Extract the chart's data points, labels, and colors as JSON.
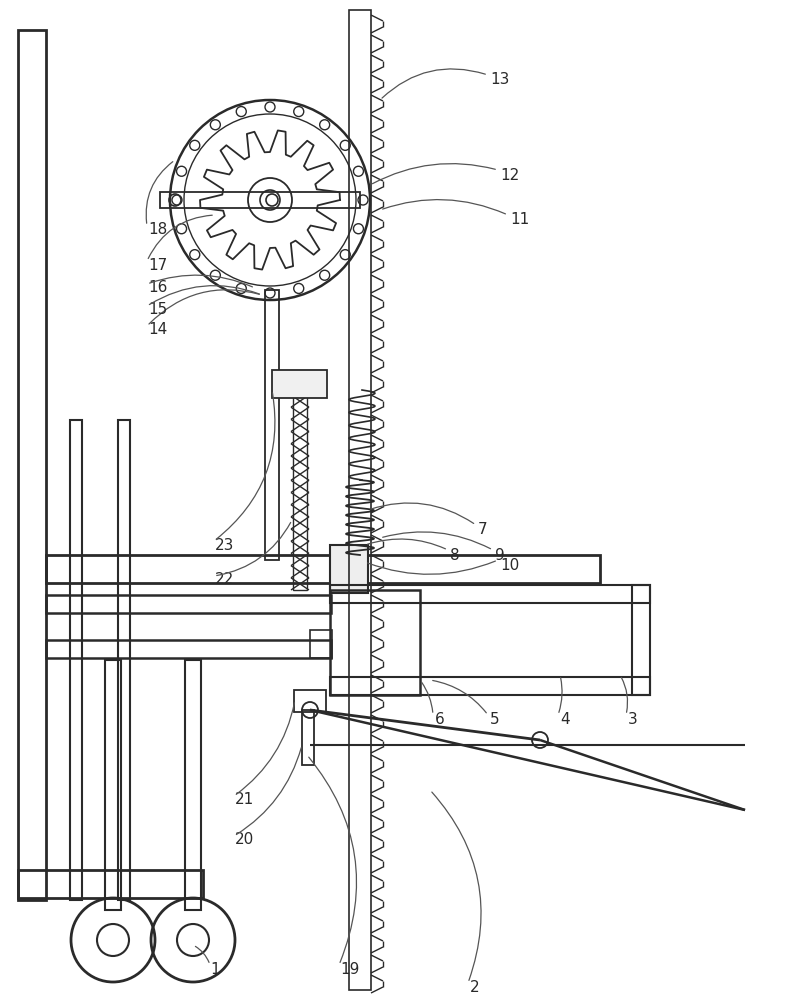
{
  "bg_color": "#ffffff",
  "lc": "#2a2a2a",
  "figsize": [
    7.89,
    10.0
  ],
  "dpi": 100
}
